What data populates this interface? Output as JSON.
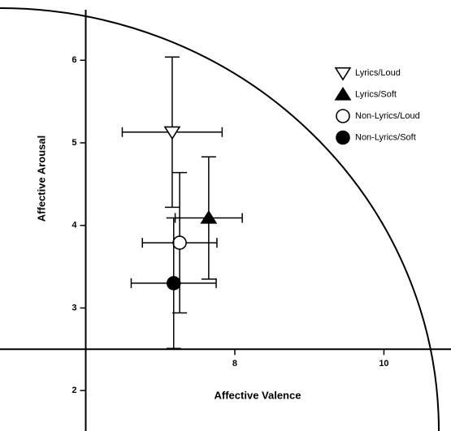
{
  "chart_data": {
    "type": "scatter",
    "xlabel": "Affective Valence",
    "ylabel": "Affective Arousal",
    "xlim": [
      4.85,
      10.9
    ],
    "ylim": [
      1.51,
      6.73
    ],
    "xticks": [
      8,
      10
    ],
    "yticks": [
      2,
      3,
      4,
      5,
      6
    ],
    "x_axis_crosses_y": 2.5,
    "y_axis_crosses_x": 6,
    "grid": false,
    "legend": "right",
    "series": [
      {
        "name": "Lyrics/Loud",
        "color": "#000000",
        "marker": "triangle-down",
        "filled": false,
        "x": [
          7.16
        ],
        "values": [
          5.13
        ],
        "xerr": [
          0.67
        ],
        "yerr": [
          0.91
        ]
      },
      {
        "name": "Lyrics/Soft",
        "color": "#000000",
        "marker": "triangle-up",
        "filled": true,
        "x": [
          7.65
        ],
        "values": [
          4.09
        ],
        "xerr": [
          0.45
        ],
        "yerr": [
          0.74
        ]
      },
      {
        "name": "Non-Lyrics/Loud",
        "color": "#000000",
        "marker": "circle",
        "filled": false,
        "x": [
          7.26
        ],
        "values": [
          3.79
        ],
        "xerr": [
          0.5
        ],
        "yerr": [
          0.85
        ]
      },
      {
        "name": "Non-Lyrics/Soft",
        "color": "#000000",
        "marker": "circle",
        "filled": true,
        "x": [
          7.18
        ],
        "values": [
          3.3
        ],
        "xerr": [
          0.57
        ],
        "yerr": [
          0.79
        ]
      }
    ]
  }
}
